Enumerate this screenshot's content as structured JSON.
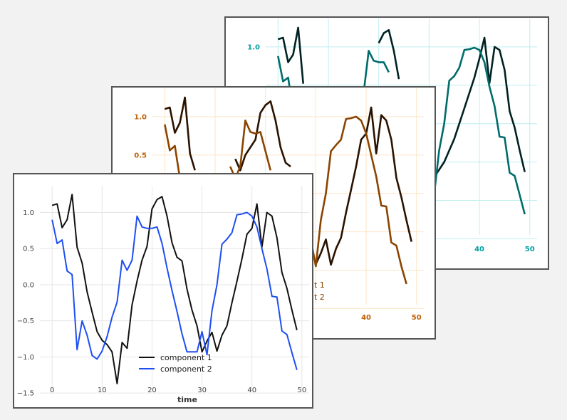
{
  "chart_data": [
    {
      "id": "back",
      "type": "line",
      "title": "",
      "xlabel": "",
      "ylabel": "",
      "grid": true,
      "colors": {
        "tick": "#00a0a0",
        "grid": "#bfeef0"
      },
      "x_ticks": [
        40,
        50
      ],
      "y_ticks": [
        1.0
      ],
      "series": [
        {
          "name": "component 1",
          "color": "#002222",
          "points": [
            [
              0,
              1.1
            ],
            [
              1,
              1.12
            ],
            [
              2,
              0.8
            ],
            [
              3,
              0.9
            ],
            [
              4,
              1.25
            ],
            [
              5,
              0.52
            ]
          ]
        },
        {
          "name": "component 1",
          "color": "#002222",
          "points": [
            [
              20,
              1.05
            ],
            [
              21,
              1.18
            ],
            [
              22,
              1.22
            ],
            [
              23,
              0.95
            ],
            [
              24,
              0.58
            ]
          ]
        },
        {
          "name": "component 1",
          "color": "#002222",
          "points": [
            [
              31,
              -0.7
            ],
            [
              33,
              -0.5
            ],
            [
              35,
              -0.2
            ],
            [
              37,
              0.2
            ],
            [
              39,
              0.6
            ],
            [
              40,
              0.85
            ],
            [
              41,
              1.12
            ],
            [
              42,
              0.53
            ],
            [
              43,
              1.0
            ],
            [
              44,
              0.96
            ],
            [
              45,
              0.7
            ],
            [
              46,
              0.16
            ],
            [
              47,
              -0.05
            ],
            [
              48,
              -0.35
            ],
            [
              49,
              -0.63
            ]
          ]
        },
        {
          "name": "component 2",
          "color": "#006b6b",
          "points": [
            [
              0,
              0.88
            ],
            [
              1,
              0.55
            ],
            [
              2,
              0.6
            ],
            [
              3,
              0.18
            ],
            [
              4,
              0.14
            ]
          ]
        },
        {
          "name": "component 2",
          "color": "#006b6b",
          "points": [
            [
              17,
              0.4
            ],
            [
              18,
              0.95
            ],
            [
              19,
              0.82
            ],
            [
              20,
              0.8
            ],
            [
              21,
              0.8
            ],
            [
              22,
              0.67
            ]
          ]
        },
        {
          "name": "component 2",
          "color": "#006b6b",
          "points": [
            [
              30,
              -0.62
            ],
            [
              31,
              -0.93
            ],
            [
              32,
              -0.35
            ],
            [
              33,
              0.0
            ],
            [
              34,
              0.56
            ],
            [
              35,
              0.62
            ],
            [
              36,
              0.73
            ],
            [
              37,
              0.96
            ],
            [
              38,
              0.97
            ],
            [
              39,
              0.99
            ],
            [
              40,
              0.96
            ],
            [
              41,
              0.8
            ],
            [
              42,
              0.48
            ],
            [
              43,
              0.23
            ],
            [
              44,
              -0.17
            ],
            [
              45,
              -0.18
            ],
            [
              46,
              -0.64
            ],
            [
              47,
              -0.68
            ],
            [
              48,
              -0.93
            ],
            [
              49,
              -1.18
            ]
          ]
        }
      ]
    },
    {
      "id": "mid",
      "type": "line",
      "title": "",
      "xlabel": "",
      "ylabel": "",
      "grid": true,
      "colors": {
        "tick": "#c06000",
        "grid": "#fde5c6"
      },
      "x_ticks": [
        40,
        50
      ],
      "y_ticks": [
        1.0,
        0.5
      ],
      "legend": [
        "t 1",
        "t 2"
      ],
      "series": [
        {
          "name": "component 1",
          "color": "#2a1200",
          "points": [
            [
              0,
              1.1
            ],
            [
              1,
              1.12
            ],
            [
              2,
              0.79
            ],
            [
              3,
              0.92
            ],
            [
              4,
              1.25
            ],
            [
              5,
              0.52
            ],
            [
              6,
              0.3
            ]
          ]
        },
        {
          "name": "component 1",
          "color": "#2a1200",
          "points": [
            [
              14,
              0.45
            ],
            [
              15,
              0.3
            ],
            [
              16,
              0.5
            ],
            [
              17,
              0.6
            ],
            [
              18,
              0.7
            ],
            [
              19,
              1.05
            ],
            [
              20,
              1.15
            ],
            [
              21,
              1.2
            ],
            [
              22,
              0.95
            ],
            [
              23,
              0.6
            ],
            [
              24,
              0.4
            ],
            [
              25,
              0.35
            ]
          ]
        },
        {
          "name": "component 1",
          "color": "#2a1200",
          "points": [
            [
              30,
              -0.92
            ],
            [
              31,
              -0.78
            ],
            [
              32,
              -0.6
            ],
            [
              33,
              -0.93
            ],
            [
              34,
              -0.72
            ],
            [
              35,
              -0.58
            ],
            [
              36,
              -0.25
            ],
            [
              37,
              0.05
            ],
            [
              38,
              0.35
            ],
            [
              39,
              0.7
            ],
            [
              40,
              0.78
            ],
            [
              41,
              1.12
            ],
            [
              42,
              0.52
            ],
            [
              43,
              1.02
            ],
            [
              44,
              0.95
            ],
            [
              45,
              0.7
            ],
            [
              46,
              0.2
            ],
            [
              47,
              -0.05
            ],
            [
              48,
              -0.35
            ],
            [
              49,
              -0.63
            ]
          ]
        },
        {
          "name": "component 2",
          "color": "#8a4400",
          "points": [
            [
              0,
              0.9
            ],
            [
              1,
              0.56
            ],
            [
              2,
              0.62
            ],
            [
              3,
              0.2
            ],
            [
              4,
              0.14
            ]
          ]
        },
        {
          "name": "component 2",
          "color": "#8a4400",
          "points": [
            [
              13,
              0.35
            ],
            [
              14,
              0.2
            ],
            [
              15,
              0.35
            ],
            [
              16,
              0.95
            ],
            [
              17,
              0.8
            ],
            [
              18,
              0.78
            ],
            [
              19,
              0.8
            ],
            [
              20,
              0.55
            ],
            [
              21,
              0.3
            ]
          ]
        },
        {
          "name": "component 2",
          "color": "#8a4400",
          "points": [
            [
              29,
              -0.6
            ],
            [
              30,
              -0.95
            ],
            [
              31,
              -0.35
            ],
            [
              32,
              0.0
            ],
            [
              33,
              0.55
            ],
            [
              34,
              0.63
            ],
            [
              35,
              0.7
            ],
            [
              36,
              0.97
            ],
            [
              37,
              0.98
            ],
            [
              38,
              1.0
            ],
            [
              39,
              0.95
            ],
            [
              40,
              0.78
            ],
            [
              41,
              0.5
            ],
            [
              42,
              0.22
            ],
            [
              43,
              -0.16
            ],
            [
              44,
              -0.17
            ],
            [
              45,
              -0.64
            ],
            [
              46,
              -0.68
            ],
            [
              47,
              -0.95
            ],
            [
              48,
              -1.18
            ]
          ]
        }
      ]
    },
    {
      "id": "front",
      "type": "line",
      "title": "",
      "xlabel": "time",
      "ylabel": "",
      "grid": true,
      "xlim": [
        -2.45,
        51.45
      ],
      "ylim": [
        -1.45,
        1.37
      ],
      "colors": {
        "tick": "#444444",
        "grid": "#e6e6e6"
      },
      "x_ticks": [
        0,
        10,
        20,
        30,
        40,
        50
      ],
      "y_ticks": [
        1.0,
        0.5,
        0.0,
        -0.5,
        -1.0,
        -1.5
      ],
      "y_tick_labels": [
        "1.0",
        "0.5",
        "0.0",
        "−0.5",
        "−1.0",
        "−1.5"
      ],
      "legend": [
        "component 1",
        "component 2"
      ],
      "series": [
        {
          "name": "component 1",
          "color": "#111111",
          "points": [
            [
              0,
              1.1
            ],
            [
              1,
              1.12
            ],
            [
              2,
              0.79
            ],
            [
              3,
              0.9
            ],
            [
              4,
              1.25
            ],
            [
              5,
              0.52
            ],
            [
              6,
              0.3
            ],
            [
              7,
              -0.1
            ],
            [
              8,
              -0.38
            ],
            [
              9,
              -0.65
            ],
            [
              10,
              -0.77
            ],
            [
              11,
              -0.83
            ],
            [
              12,
              -0.93
            ],
            [
              13,
              -1.37
            ],
            [
              14,
              -0.8
            ],
            [
              15,
              -0.88
            ],
            [
              16,
              -0.28
            ],
            [
              17,
              0.05
            ],
            [
              18,
              0.34
            ],
            [
              19,
              0.53
            ],
            [
              20,
              1.05
            ],
            [
              21,
              1.18
            ],
            [
              22,
              1.22
            ],
            [
              23,
              0.95
            ],
            [
              24,
              0.58
            ],
            [
              25,
              0.38
            ],
            [
              26,
              0.33
            ],
            [
              27,
              -0.06
            ],
            [
              28,
              -0.35
            ],
            [
              29,
              -0.57
            ],
            [
              30,
              -0.93
            ],
            [
              31,
              -0.78
            ],
            [
              32,
              -0.66
            ],
            [
              33,
              -0.92
            ],
            [
              34,
              -0.7
            ],
            [
              35,
              -0.57
            ],
            [
              36,
              -0.25
            ],
            [
              37,
              0.05
            ],
            [
              38,
              0.36
            ],
            [
              39,
              0.7
            ],
            [
              40,
              0.78
            ],
            [
              41,
              1.12
            ],
            [
              42,
              0.52
            ],
            [
              43,
              1.0
            ],
            [
              44,
              0.95
            ],
            [
              45,
              0.65
            ],
            [
              46,
              0.17
            ],
            [
              47,
              -0.05
            ],
            [
              48,
              -0.35
            ],
            [
              49,
              -0.63
            ]
          ]
        },
        {
          "name": "component 2",
          "color": "#1f4ff0",
          "points": [
            [
              0,
              0.9
            ],
            [
              1,
              0.57
            ],
            [
              2,
              0.62
            ],
            [
              3,
              0.19
            ],
            [
              4,
              0.14
            ],
            [
              5,
              -0.9
            ],
            [
              6,
              -0.5
            ],
            [
              7,
              -0.7
            ],
            [
              8,
              -0.98
            ],
            [
              9,
              -1.03
            ],
            [
              10,
              -0.92
            ],
            [
              11,
              -0.72
            ],
            [
              12,
              -0.45
            ],
            [
              13,
              -0.24
            ],
            [
              14,
              0.34
            ],
            [
              15,
              0.2
            ],
            [
              16,
              0.34
            ],
            [
              17,
              0.95
            ],
            [
              18,
              0.8
            ],
            [
              19,
              0.78
            ],
            [
              20,
              0.78
            ],
            [
              21,
              0.8
            ],
            [
              22,
              0.57
            ],
            [
              23,
              0.23
            ],
            [
              24,
              -0.08
            ],
            [
              25,
              -0.37
            ],
            [
              26,
              -0.68
            ],
            [
              27,
              -0.93
            ],
            [
              28,
              -0.93
            ],
            [
              29,
              -0.93
            ],
            [
              30,
              -0.65
            ],
            [
              31,
              -0.97
            ],
            [
              32,
              -0.36
            ],
            [
              33,
              0.0
            ],
            [
              34,
              0.56
            ],
            [
              35,
              0.63
            ],
            [
              36,
              0.72
            ],
            [
              37,
              0.97
            ],
            [
              38,
              0.98
            ],
            [
              39,
              1.0
            ],
            [
              40,
              0.95
            ],
            [
              41,
              0.8
            ],
            [
              42,
              0.5
            ],
            [
              43,
              0.22
            ],
            [
              44,
              -0.16
            ],
            [
              45,
              -0.17
            ],
            [
              46,
              -0.64
            ],
            [
              47,
              -0.69
            ],
            [
              48,
              -0.94
            ],
            [
              49,
              -1.18
            ]
          ]
        }
      ]
    }
  ]
}
